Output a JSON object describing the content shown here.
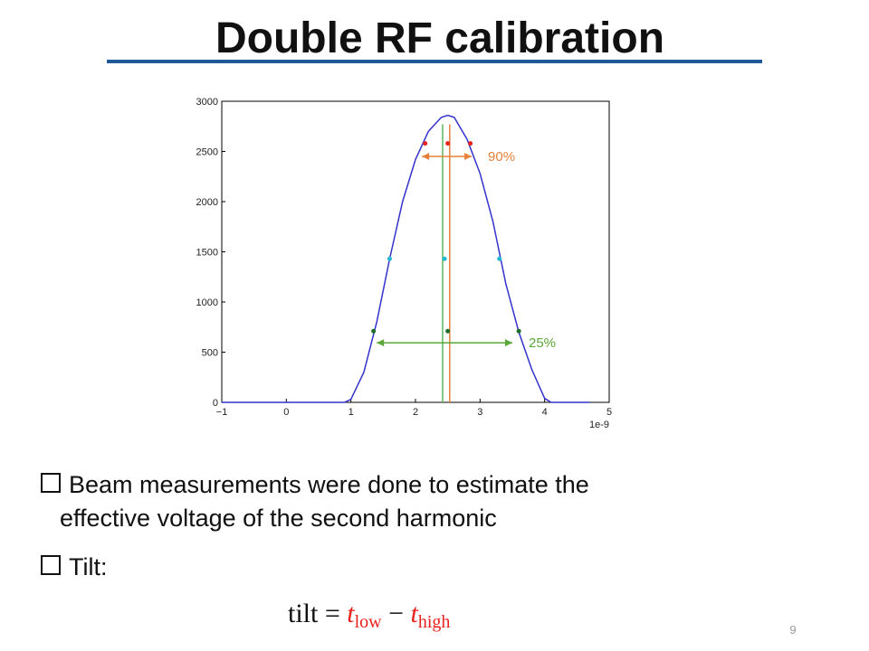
{
  "header": {
    "title": "Double RF calibration"
  },
  "chart_data": {
    "type": "line",
    "x": [
      -1,
      0,
      0.9,
      1.0,
      1.2,
      1.4,
      1.6,
      1.8,
      2.0,
      2.2,
      2.4,
      2.5,
      2.6,
      2.8,
      3.0,
      3.2,
      3.4,
      3.6,
      3.8,
      4.0,
      4.1,
      4.7
    ],
    "series": [
      {
        "color": "#3333cc",
        "values": [
          0,
          0,
          0,
          30,
          300,
          800,
          1430,
          2000,
          2420,
          2700,
          2840,
          2860,
          2840,
          2620,
          2280,
          1800,
          1180,
          700,
          330,
          40,
          0,
          0
        ]
      }
    ],
    "points": [
      {
        "color": "#e8221c",
        "x": [
          2.15,
          2.5,
          2.85
        ],
        "values": [
          2580,
          2580,
          2580
        ]
      },
      {
        "color": "#22b8d0",
        "x": [
          1.6,
          2.45,
          3.3
        ],
        "values": [
          1430,
          1430,
          1430
        ]
      },
      {
        "color": "#1e6e2a",
        "x": [
          1.35,
          2.5,
          3.6
        ],
        "values": [
          710,
          710,
          710
        ]
      }
    ],
    "vlines": [
      {
        "color": "#5cb85c",
        "x": 2.42,
        "ymax": 2770
      },
      {
        "color": "#e8803a",
        "x": 2.53,
        "ymax": 2770
      }
    ],
    "annotations": [
      {
        "text": "90%",
        "color": "#e8803a",
        "x": [
          2.1,
          2.87
        ],
        "y": 2450
      },
      {
        "text": "25%",
        "color": "#5aa83a",
        "x": [
          1.4,
          3.5
        ],
        "y": 594
      }
    ],
    "xlim": [
      -1,
      5
    ],
    "ylim": [
      0,
      3000
    ],
    "xticks": [
      {
        "value": -1,
        "label": "−1"
      },
      0,
      1,
      2,
      3,
      4,
      5
    ],
    "yticks": [
      0,
      500,
      1000,
      1500,
      2000,
      2500,
      3000
    ],
    "x_offset_label": "1e-9"
  },
  "bullets": [
    [
      "Beam measurements were done to estimate the",
      "effective voltage of the second harmonic"
    ],
    [
      "Tilt:"
    ]
  ],
  "formula": {
    "lhs": "tilt",
    "eq": "=",
    "t1": "t",
    "sub1": "low",
    "minus": "−",
    "t2": "t",
    "sub2": "high"
  },
  "page_number": "9"
}
